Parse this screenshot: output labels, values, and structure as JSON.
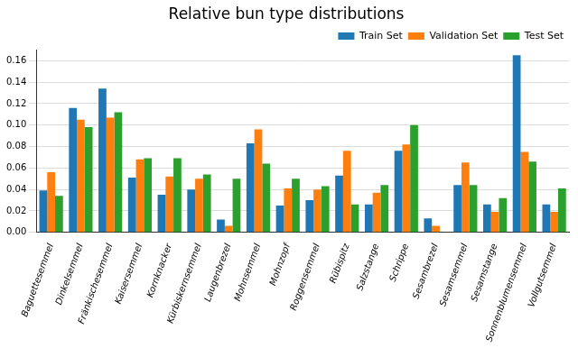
{
  "chart_data": {
    "type": "bar",
    "title": "Relative bun type distributions",
    "categories": [
      "Baguettesemmel",
      "Dinkelsemmel",
      "Fränkischesemmel",
      "Kaisersemmel",
      "Kornknacker",
      "Kürbiskernsemmel",
      "Laugenbrezel",
      "Mohnsemmel",
      "Mohnzopf",
      "Roggensemmel",
      "Rübispitz",
      "Salzstange",
      "Schrippe",
      "Sesambrezel",
      "Sesamsemmel",
      "Sesamstange",
      "Sonnenblumensemmel",
      "Vollgutsemmel"
    ],
    "series": [
      {
        "name": "Train Set",
        "color": "#1f77b4",
        "values": [
          0.039,
          0.116,
          0.134,
          0.051,
          0.035,
          0.04,
          0.012,
          0.083,
          0.025,
          0.03,
          0.053,
          0.026,
          0.076,
          0.013,
          0.044,
          0.026,
          0.165,
          0.026
        ]
      },
      {
        "name": "Validation Set",
        "color": "#ff7f0e",
        "values": [
          0.056,
          0.105,
          0.107,
          0.068,
          0.052,
          0.05,
          0.006,
          0.096,
          0.041,
          0.04,
          0.076,
          0.037,
          0.082,
          0.006,
          0.065,
          0.019,
          0.075,
          0.019
        ]
      },
      {
        "name": "Test Set",
        "color": "#2ca02c",
        "values": [
          0.034,
          0.098,
          0.112,
          0.069,
          0.069,
          0.054,
          0.05,
          0.064,
          0.05,
          0.043,
          0.026,
          0.044,
          0.1,
          0.0,
          0.044,
          0.032,
          0.066,
          0.041
        ]
      }
    ],
    "ylim": [
      0,
      0.17
    ],
    "yticks": [
      {
        "value": 0,
        "label": "0.00"
      },
      {
        "value": 0.02,
        "label": "0.02"
      },
      {
        "value": 0.04,
        "label": "0.04"
      },
      {
        "value": 0.06,
        "label": "0.06"
      },
      {
        "value": 0.08,
        "label": "0.08"
      },
      {
        "value": 0.1,
        "label": "0.10"
      },
      {
        "value": 0.12,
        "label": "0.12"
      },
      {
        "value": 0.14,
        "label": "0.14"
      },
      {
        "value": 0.16,
        "label": "0.16"
      }
    ],
    "grid": true,
    "legend": "upper right"
  }
}
